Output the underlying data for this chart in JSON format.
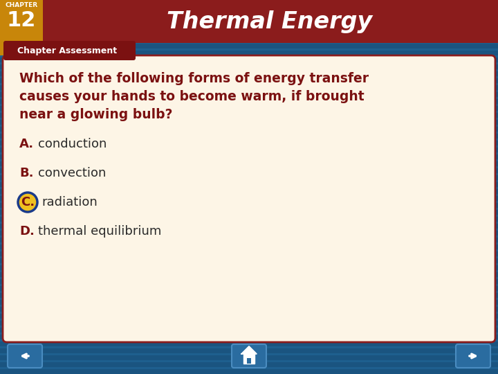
{
  "title": "Thermal Energy",
  "chapter_label": "CHAPTER",
  "chapter_number": "12",
  "section_label": "Chapter Assessment",
  "question_lines": [
    "Which of the following forms of energy transfer",
    "causes your hands to become warm, if brought",
    "near a glowing bulb?"
  ],
  "options": [
    {
      "letter": "A.",
      "text": "conduction",
      "selected": false
    },
    {
      "letter": "B.",
      "text": "convection",
      "selected": false
    },
    {
      "letter": "C.",
      "text": "radiation",
      "selected": true
    },
    {
      "letter": "D.",
      "text": "thermal equilibrium",
      "selected": false
    }
  ],
  "bg_outer": "#1e5f8e",
  "bg_stripe": "#1a5480",
  "bg_header": "#8b1c1c",
  "bg_chapter_box": "#c8860a",
  "bg_content": "#fdf5e6",
  "bg_section_tab": "#7b1111",
  "text_title": "#ffffff",
  "text_chapter_label": "#ffffff",
  "text_chapter_number": "#ffffff",
  "text_section": "#ffffff",
  "text_question": "#7b1111",
  "text_option_letter": "#7b1111",
  "text_option_text": "#2a2a2a",
  "selected_circle_fill": "#f0c020",
  "selected_circle_border": "#1a3a8a",
  "content_border": "#8b1c1c",
  "nav_btn_face": "#2a6ca0",
  "nav_btn_edge": "#4a8cc0",
  "figsize": [
    7.2,
    5.4
  ],
  "dpi": 100
}
